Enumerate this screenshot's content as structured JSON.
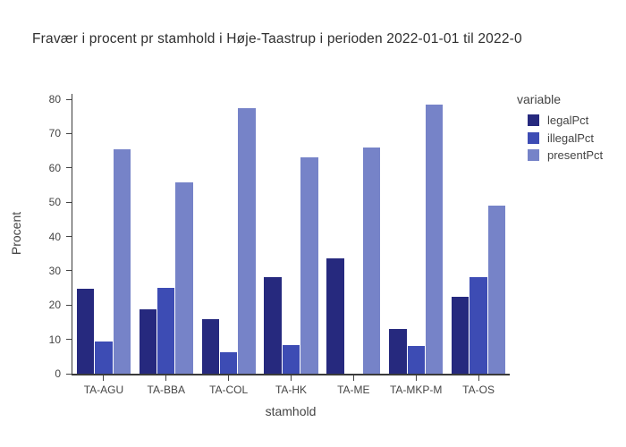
{
  "title": "Fravær i procent pr stamhold i Høje-Taastrup i perioden 2022-01-01 til 2022-0",
  "chart_data": {
    "type": "bar",
    "grouped": true,
    "title": "Fravær i procent pr stamhold i Høje-Taastrup i perioden 2022-01-01 til 2022-0",
    "xlabel": "stamhold",
    "ylabel": "Procent",
    "categories": [
      "TA-AGU",
      "TA-BBA",
      "TA-COL",
      "TA-HK",
      "TA-ME",
      "TA-MKP-M",
      "TA-OS"
    ],
    "series": [
      {
        "name": "legalPct",
        "color": "#26297e",
        "values": [
          24.7,
          18.8,
          16.0,
          28.2,
          33.7,
          13.1,
          22.4
        ]
      },
      {
        "name": "illegalPct",
        "color": "#3d4cb4",
        "values": [
          9.5,
          25.0,
          6.3,
          8.4,
          0,
          8.0,
          28.1
        ]
      },
      {
        "name": "presentPct",
        "color": "#7683c8",
        "values": [
          65.4,
          55.9,
          77.4,
          63.0,
          66.0,
          78.6,
          49.0
        ]
      }
    ],
    "ylim": [
      0,
      81.6
    ],
    "yticks": [
      0,
      10,
      20,
      30,
      40,
      50,
      60,
      70,
      80
    ],
    "legend_title": "variable",
    "legend_position": "right-top",
    "grid": false,
    "background": "#ffffff",
    "axis_color": "#444444"
  }
}
